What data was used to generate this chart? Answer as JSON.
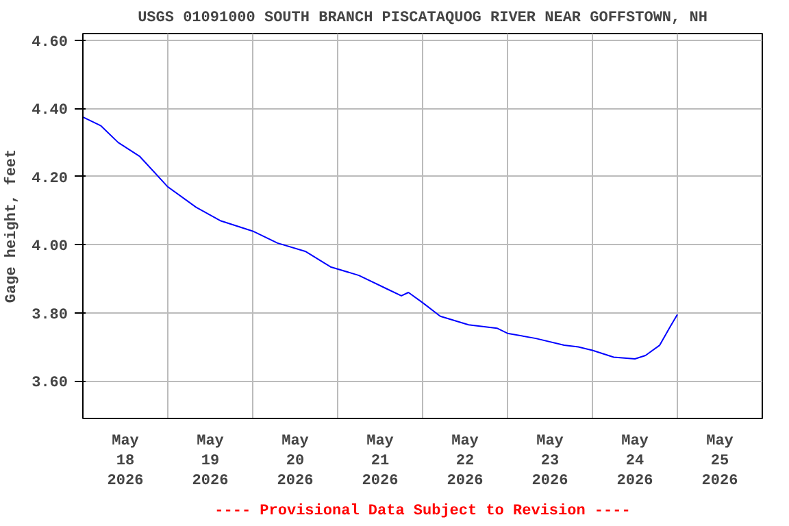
{
  "chart_data": {
    "type": "line",
    "title": "USGS 01091000 SOUTH BRANCH PISCATAQUOG RIVER NEAR GOFFSTOWN, NH",
    "ylabel": "Gage height, feet",
    "annotations": [
      "---- Provisional Data Subject to Revision ----"
    ],
    "xlim": [
      "2026-05-18T00:00",
      "2026-05-26T00:00"
    ],
    "ylim": [
      3.49,
      4.62
    ],
    "yticks": [
      {
        "value": 3.6,
        "label": "3.60"
      },
      {
        "value": 3.8,
        "label": "3.80"
      },
      {
        "value": 4.0,
        "label": "4.00"
      },
      {
        "value": 4.2,
        "label": "4.20"
      },
      {
        "value": 4.4,
        "label": "4.40"
      },
      {
        "value": 4.6,
        "label": "4.60"
      }
    ],
    "xticks": [
      {
        "value": "2026-05-18T12:00",
        "label": "May\n18\n2026"
      },
      {
        "value": "2026-05-19T12:00",
        "label": "May\n19\n2026"
      },
      {
        "value": "2026-05-20T12:00",
        "label": "May\n20\n2026"
      },
      {
        "value": "2026-05-21T12:00",
        "label": "May\n21\n2026"
      },
      {
        "value": "2026-05-22T12:00",
        "label": "May\n22\n2026"
      },
      {
        "value": "2026-05-23T12:00",
        "label": "May\n23\n2026"
      },
      {
        "value": "2026-05-24T12:00",
        "label": "May\n24\n2026"
      },
      {
        "value": "2026-05-25T12:00",
        "label": "May\n25\n2026"
      },
      {
        "value": "2026-05-19T00:00",
        "label": null
      },
      {
        "value": "2026-05-20T00:00",
        "label": null
      },
      {
        "value": "2026-05-21T00:00",
        "label": null
      },
      {
        "value": "2026-05-22T00:00",
        "label": null
      },
      {
        "value": "2026-05-23T00:00",
        "label": null
      },
      {
        "value": "2026-05-24T00:00",
        "label": null
      },
      {
        "value": "2026-05-25T00:00",
        "label": null
      }
    ],
    "grid": true,
    "marker": "none",
    "line_style": "solid",
    "x": [
      "2026-05-18T00:00",
      "2026-05-18T05:00",
      "2026-05-18T10:00",
      "2026-05-18T16:00",
      "2026-05-19T00:00",
      "2026-05-19T08:00",
      "2026-05-19T15:00",
      "2026-05-20T00:00",
      "2026-05-20T07:00",
      "2026-05-20T15:00",
      "2026-05-20T22:00",
      "2026-05-21T06:00",
      "2026-05-21T14:00",
      "2026-05-21T18:00",
      "2026-05-21T20:00",
      "2026-05-22T00:00",
      "2026-05-22T05:00",
      "2026-05-22T13:00",
      "2026-05-22T21:00",
      "2026-05-23T00:00",
      "2026-05-23T08:00",
      "2026-05-23T16:00",
      "2026-05-23T20:00",
      "2026-05-24T00:00",
      "2026-05-24T06:00",
      "2026-05-24T12:00",
      "2026-05-24T15:00",
      "2026-05-24T19:00",
      "2026-05-24T22:00",
      "2026-05-25T00:00"
    ],
    "series": [
      {
        "color": "#0000ff",
        "values": [
          4.375,
          4.35,
          4.3,
          4.26,
          4.17,
          4.11,
          4.07,
          4.04,
          4.005,
          3.98,
          3.935,
          3.91,
          3.87,
          3.85,
          3.86,
          3.83,
          3.79,
          3.765,
          3.755,
          3.74,
          3.725,
          3.705,
          3.7,
          3.69,
          3.67,
          3.665,
          3.675,
          3.705,
          3.76,
          3.795
        ]
      }
    ]
  }
}
